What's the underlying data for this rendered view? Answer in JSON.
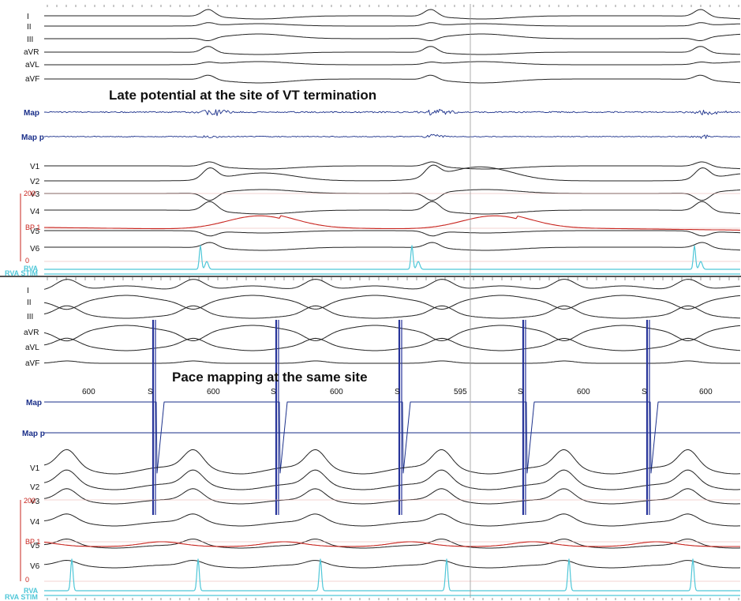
{
  "colors": {
    "surface": "#222222",
    "map": "#1a2f8a",
    "bp": "#c8251f",
    "rva": "#4fc7d8",
    "stim": "#27349a",
    "grid": "#9a9a9a"
  },
  "panel_top": {
    "annotation": "Late potential at the site of VT termination",
    "leads": [
      "I",
      "II",
      "III",
      "aVR",
      "aVL",
      "aVF"
    ],
    "map_labels": [
      "Map",
      "Map p"
    ],
    "precordial": [
      "V1",
      "V2",
      "V3",
      "V4",
      "V5",
      "V6"
    ],
    "bp_label": "BP 1",
    "bp_scale_top": "200",
    "bp_scale_bottom": "0",
    "rva_labels": [
      "RVA",
      "RVA STIM"
    ]
  },
  "panel_bottom": {
    "annotation": "Pace mapping at the same site",
    "leads": [
      "I",
      "II",
      "III",
      "aVR",
      "aVL",
      "aVF"
    ],
    "map_labels": [
      "Map",
      "Map p"
    ],
    "precordial": [
      "V1",
      "V2",
      "V3",
      "V4",
      "V5",
      "V6"
    ],
    "bp_label": "BP 1",
    "bp_scale_top": "200",
    "bp_scale_bottom": "0",
    "rva_labels": [
      "RVA",
      "RVA STIM"
    ],
    "intervals": [
      "600",
      "600",
      "600",
      "595",
      "600",
      "600"
    ],
    "stim_marker": "S"
  }
}
